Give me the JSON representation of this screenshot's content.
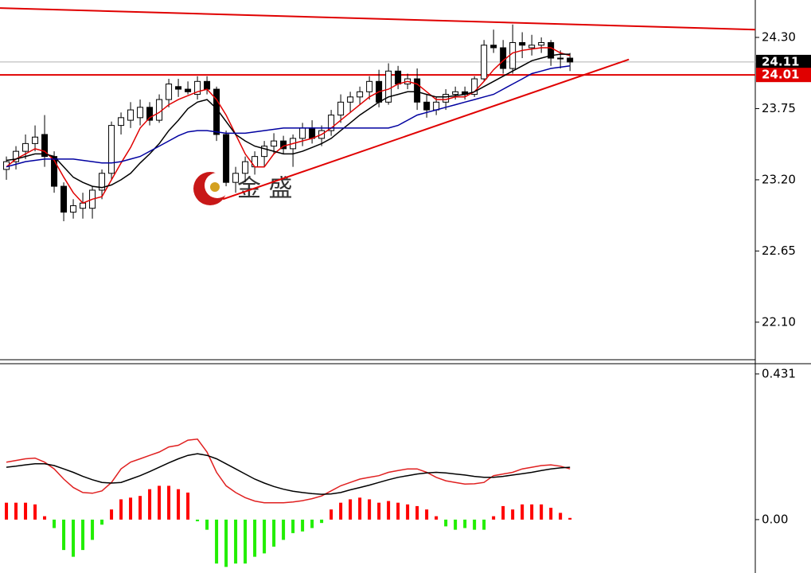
{
  "chart_data": [
    {
      "type": "candlestick",
      "watermark": "金 盛",
      "xlim": [
        -0.67,
        78.4
      ],
      "ylim": [
        21.81,
        24.589
      ],
      "yticks": [
        {
          "value": 24.3,
          "label": "24.30"
        },
        23.75,
        {
          "value": 23.2,
          "label": "23.20"
        },
        22.65,
        {
          "value": 22.1,
          "label": "22.10"
        }
      ],
      "open": [
        23.28,
        23.34,
        23.42,
        23.48,
        23.55,
        23.38,
        23.15,
        22.95,
        22.98,
        22.98,
        23.12,
        23.25,
        23.62,
        23.66,
        23.68,
        23.76,
        23.66,
        23.82,
        23.92,
        23.9,
        23.86,
        23.96,
        23.9,
        23.55,
        23.18,
        23.25,
        23.3,
        23.38,
        23.46,
        23.5,
        23.44,
        23.52,
        23.6,
        23.52,
        23.58,
        23.7,
        23.8,
        23.84,
        23.88,
        23.96,
        23.8,
        24.04,
        23.94,
        23.98,
        23.8,
        23.74,
        23.8,
        23.86,
        23.88,
        23.86,
        23.98,
        24.24,
        24.22,
        24.06,
        24.26,
        24.22,
        24.24,
        24.26,
        24.14,
        24.14
      ],
      "high": [
        23.38,
        23.46,
        23.55,
        23.62,
        23.7,
        23.42,
        23.18,
        23.05,
        23.1,
        23.15,
        23.28,
        23.65,
        23.72,
        23.8,
        23.82,
        23.8,
        23.86,
        23.98,
        23.98,
        23.96,
        24.0,
        24.0,
        23.92,
        23.58,
        23.3,
        23.38,
        23.42,
        23.5,
        23.56,
        23.54,
        23.55,
        23.64,
        23.66,
        23.62,
        23.74,
        23.86,
        23.88,
        23.92,
        24.0,
        24.05,
        24.1,
        24.08,
        24.02,
        24.06,
        23.86,
        23.84,
        23.9,
        23.92,
        23.92,
        24.0,
        24.28,
        24.36,
        24.28,
        24.4,
        24.34,
        24.32,
        24.3,
        24.28,
        24.2,
        24.18
      ],
      "low": [
        23.2,
        23.28,
        23.36,
        23.42,
        23.3,
        23.1,
        22.88,
        22.9,
        22.9,
        22.9,
        23.05,
        23.2,
        23.55,
        23.6,
        23.62,
        23.62,
        23.64,
        23.76,
        23.84,
        23.86,
        23.82,
        23.86,
        23.5,
        23.15,
        23.1,
        23.18,
        23.24,
        23.3,
        23.4,
        23.4,
        23.3,
        23.46,
        23.48,
        23.46,
        23.54,
        23.64,
        23.72,
        23.78,
        23.82,
        23.76,
        23.78,
        23.9,
        23.9,
        23.74,
        23.68,
        23.7,
        23.74,
        23.82,
        23.82,
        23.84,
        23.96,
        24.18,
        24.02,
        24.02,
        24.14,
        24.16,
        24.18,
        24.08,
        24.06,
        24.04
      ],
      "close": [
        23.34,
        23.42,
        23.48,
        23.53,
        23.38,
        23.15,
        22.95,
        23.0,
        23.02,
        23.12,
        23.25,
        23.62,
        23.68,
        23.74,
        23.76,
        23.66,
        23.82,
        23.94,
        23.9,
        23.88,
        23.96,
        23.9,
        23.55,
        23.18,
        23.25,
        23.34,
        23.38,
        23.46,
        23.5,
        23.44,
        23.52,
        23.6,
        23.52,
        23.58,
        23.7,
        23.8,
        23.84,
        23.88,
        23.96,
        23.8,
        24.04,
        23.94,
        23.98,
        23.8,
        23.74,
        23.8,
        23.86,
        23.88,
        23.86,
        23.98,
        24.24,
        24.22,
        24.06,
        24.26,
        24.24,
        24.24,
        24.26,
        24.14,
        24.14,
        24.11
      ],
      "series": [
        {
          "color": "#e00000",
          "values": [
            23.3,
            23.36,
            23.4,
            23.44,
            23.42,
            23.35,
            23.22,
            23.1,
            23.02,
            23.05,
            23.07,
            23.2,
            23.33,
            23.45,
            23.6,
            23.68,
            23.72,
            23.78,
            23.82,
            23.85,
            23.88,
            23.9,
            23.82,
            23.7,
            23.55,
            23.4,
            23.3,
            23.3,
            23.4,
            23.46,
            23.48,
            23.5,
            23.52,
            23.55,
            23.6,
            23.66,
            23.72,
            23.78,
            23.84,
            23.88,
            23.9,
            23.94,
            23.96,
            23.94,
            23.88,
            23.82,
            23.82,
            23.84,
            23.84,
            23.88,
            23.96,
            24.05,
            24.12,
            24.18,
            24.2,
            24.21,
            24.22,
            24.22,
            24.18,
            24.16
          ]
        },
        {
          "color": "#000000",
          "values": [
            23.35,
            23.36,
            23.38,
            23.4,
            23.4,
            23.38,
            23.3,
            23.22,
            23.18,
            23.15,
            23.14,
            23.16,
            23.2,
            23.25,
            23.33,
            23.4,
            23.48,
            23.58,
            23.66,
            23.75,
            23.8,
            23.82,
            23.75,
            23.65,
            23.55,
            23.5,
            23.46,
            23.44,
            23.42,
            23.4,
            23.4,
            23.42,
            23.45,
            23.48,
            23.52,
            23.58,
            23.64,
            23.7,
            23.75,
            23.8,
            23.84,
            23.86,
            23.88,
            23.88,
            23.86,
            23.84,
            23.84,
            23.85,
            23.86,
            23.88,
            23.92,
            23.96,
            24.0,
            24.04,
            24.08,
            24.12,
            24.14,
            24.16,
            24.17,
            24.17
          ]
        },
        {
          "color": "#0000a0",
          "values": [
            23.3,
            23.32,
            23.34,
            23.35,
            23.36,
            23.36,
            23.36,
            23.36,
            23.35,
            23.34,
            23.33,
            23.33,
            23.34,
            23.36,
            23.38,
            23.42,
            23.46,
            23.5,
            23.54,
            23.57,
            23.58,
            23.58,
            23.57,
            23.56,
            23.56,
            23.56,
            23.57,
            23.58,
            23.59,
            23.6,
            23.6,
            23.6,
            23.6,
            23.6,
            23.6,
            23.6,
            23.6,
            23.6,
            23.6,
            23.6,
            23.6,
            23.62,
            23.66,
            23.7,
            23.72,
            23.74,
            23.76,
            23.78,
            23.8,
            23.82,
            23.84,
            23.86,
            23.9,
            23.94,
            23.98,
            24.02,
            24.04,
            24.06,
            24.07,
            24.08
          ]
        }
      ],
      "trendlines": [
        {
          "color": "#e00000",
          "x": [
            -0.67,
            78.4
          ],
          "y": [
            24.527,
            24.36
          ]
        },
        {
          "color": "#e00000",
          "x": [
            22.67,
            65.17
          ],
          "y": [
            23.05,
            24.13
          ]
        }
      ],
      "price_lines": [
        {
          "value": 24.11,
          "color": "#b0b0b0",
          "label_bg": "#000000"
        },
        {
          "value": 24.01,
          "color": "#e00000",
          "label_bg": "#e00000"
        }
      ]
    },
    {
      "type": "macd",
      "xlim": [
        -0.67,
        78.4
      ],
      "ylim": [
        -0.158,
        0.459
      ],
      "yticks": [
        0.431,
        {
          "value": 0,
          "label": "0.00"
        }
      ],
      "histogram": [
        0.05,
        0.05,
        0.05,
        0.045,
        0.01,
        -0.025,
        -0.09,
        -0.11,
        -0.09,
        -0.06,
        -0.015,
        0.03,
        0.06,
        0.065,
        0.07,
        0.09,
        0.1,
        0.1,
        0.09,
        0.08,
        -0.005,
        -0.03,
        -0.13,
        -0.14,
        -0.13,
        -0.13,
        -0.11,
        -0.1,
        -0.08,
        -0.06,
        -0.04,
        -0.035,
        -0.025,
        -0.01,
        0.03,
        0.05,
        0.06,
        0.065,
        0.06,
        0.05,
        0.055,
        0.05,
        0.045,
        0.04,
        0.03,
        0.01,
        -0.02,
        -0.03,
        -0.025,
        -0.03,
        -0.03,
        0.01,
        0.04,
        0.03,
        0.045,
        0.045,
        0.045,
        0.035,
        0.02,
        0.005
      ],
      "positive_color": "#ff0000",
      "negative_color": "#22ee00",
      "series": [
        {
          "color": "#e02020",
          "values": [
            0.17,
            0.175,
            0.18,
            0.182,
            0.17,
            0.15,
            0.12,
            0.095,
            0.08,
            0.078,
            0.085,
            0.11,
            0.15,
            0.17,
            0.18,
            0.19,
            0.2,
            0.215,
            0.22,
            0.235,
            0.238,
            0.2,
            0.14,
            0.1,
            0.08,
            0.065,
            0.055,
            0.05,
            0.05,
            0.05,
            0.052,
            0.056,
            0.062,
            0.07,
            0.085,
            0.1,
            0.11,
            0.12,
            0.125,
            0.13,
            0.14,
            0.145,
            0.15,
            0.15,
            0.14,
            0.125,
            0.115,
            0.11,
            0.105,
            0.106,
            0.11,
            0.13,
            0.135,
            0.14,
            0.15,
            0.155,
            0.16,
            0.162,
            0.158,
            0.15
          ]
        },
        {
          "color": "#000000",
          "values": [
            0.155,
            0.158,
            0.162,
            0.165,
            0.165,
            0.16,
            0.15,
            0.14,
            0.128,
            0.118,
            0.11,
            0.108,
            0.11,
            0.12,
            0.13,
            0.142,
            0.155,
            0.168,
            0.18,
            0.19,
            0.195,
            0.19,
            0.18,
            0.165,
            0.15,
            0.135,
            0.12,
            0.108,
            0.098,
            0.09,
            0.084,
            0.08,
            0.077,
            0.075,
            0.076,
            0.08,
            0.088,
            0.095,
            0.102,
            0.11,
            0.118,
            0.125,
            0.13,
            0.135,
            0.138,
            0.14,
            0.138,
            0.135,
            0.132,
            0.128,
            0.125,
            0.125,
            0.128,
            0.132,
            0.136,
            0.14,
            0.145,
            0.15,
            0.153,
            0.155
          ]
        }
      ]
    }
  ]
}
